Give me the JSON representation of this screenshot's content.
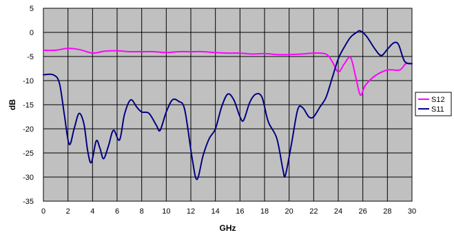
{
  "chart_data": {
    "type": "line",
    "xlabel": "GHz",
    "ylabel": "dB",
    "xlim": [
      0,
      30
    ],
    "ylim": [
      -35,
      5
    ],
    "x_ticks": [
      0,
      2,
      4,
      6,
      8,
      10,
      12,
      14,
      16,
      18,
      20,
      22,
      24,
      26,
      28,
      30
    ],
    "y_ticks": [
      5,
      0,
      -5,
      -10,
      -15,
      -20,
      -25,
      -30,
      -35
    ],
    "grid": true,
    "legend_position": "right",
    "plot_background": "#c0c0c0",
    "series": [
      {
        "name": "S12",
        "color": "#ff00ff",
        "points": [
          [
            0,
            -3.7
          ],
          [
            1,
            -3.7
          ],
          [
            2,
            -3.3
          ],
          [
            3,
            -3.6
          ],
          [
            4,
            -4.3
          ],
          [
            5,
            -3.9
          ],
          [
            6,
            -3.8
          ],
          [
            7,
            -4.0
          ],
          [
            8,
            -4.0
          ],
          [
            9,
            -4.0
          ],
          [
            10,
            -4.2
          ],
          [
            11,
            -4.0
          ],
          [
            12,
            -4.0
          ],
          [
            13,
            -4.0
          ],
          [
            14,
            -4.2
          ],
          [
            15,
            -4.3
          ],
          [
            16,
            -4.3
          ],
          [
            17,
            -4.5
          ],
          [
            18,
            -4.4
          ],
          [
            19,
            -4.6
          ],
          [
            20,
            -4.6
          ],
          [
            21,
            -4.5
          ],
          [
            22,
            -4.3
          ],
          [
            23,
            -4.5
          ],
          [
            23.5,
            -6.0
          ],
          [
            24,
            -8.2
          ],
          [
            24.5,
            -6.5
          ],
          [
            25,
            -5.2
          ],
          [
            25.4,
            -9.0
          ],
          [
            25.8,
            -13.0
          ],
          [
            26.2,
            -11.0
          ],
          [
            27,
            -9.0
          ],
          [
            28,
            -7.8
          ],
          [
            29,
            -7.8
          ],
          [
            29.5,
            -6.5
          ],
          [
            30,
            -6.5
          ]
        ]
      },
      {
        "name": "S11",
        "color": "#000080",
        "points": [
          [
            0,
            -8.8
          ],
          [
            0.8,
            -8.8
          ],
          [
            1.3,
            -10.5
          ],
          [
            1.7,
            -17.0
          ],
          [
            2.1,
            -23.2
          ],
          [
            2.5,
            -20.0
          ],
          [
            2.9,
            -16.8
          ],
          [
            3.3,
            -19.0
          ],
          [
            3.6,
            -24.5
          ],
          [
            3.9,
            -27.0
          ],
          [
            4.3,
            -22.5
          ],
          [
            4.6,
            -24.0
          ],
          [
            4.9,
            -26.2
          ],
          [
            5.3,
            -23.5
          ],
          [
            5.7,
            -20.3
          ],
          [
            6.2,
            -22.3
          ],
          [
            6.6,
            -17.0
          ],
          [
            7.1,
            -14.0
          ],
          [
            7.6,
            -15.5
          ],
          [
            8.0,
            -16.5
          ],
          [
            8.6,
            -16.8
          ],
          [
            9.2,
            -19.3
          ],
          [
            9.5,
            -20.3
          ],
          [
            10.0,
            -16.5
          ],
          [
            10.5,
            -14.0
          ],
          [
            11.0,
            -14.3
          ],
          [
            11.5,
            -16.0
          ],
          [
            12.1,
            -26.0
          ],
          [
            12.5,
            -30.5
          ],
          [
            13.0,
            -25.5
          ],
          [
            13.5,
            -22.0
          ],
          [
            14.0,
            -20.0
          ],
          [
            14.5,
            -15.5
          ],
          [
            15.0,
            -12.8
          ],
          [
            15.5,
            -14.0
          ],
          [
            16.0,
            -17.5
          ],
          [
            16.3,
            -18.2
          ],
          [
            16.8,
            -14.5
          ],
          [
            17.3,
            -12.8
          ],
          [
            17.8,
            -13.5
          ],
          [
            18.3,
            -18.5
          ],
          [
            19.0,
            -22.0
          ],
          [
            19.5,
            -28.5
          ],
          [
            19.7,
            -29.6
          ],
          [
            20.2,
            -23.0
          ],
          [
            20.7,
            -16.0
          ],
          [
            21.1,
            -15.6
          ],
          [
            21.6,
            -17.5
          ],
          [
            22.0,
            -17.5
          ],
          [
            22.5,
            -15.5
          ],
          [
            23.0,
            -13.5
          ],
          [
            23.5,
            -9.5
          ],
          [
            24.0,
            -5.5
          ],
          [
            24.5,
            -3.0
          ],
          [
            25.0,
            -1.0
          ],
          [
            25.5,
            0.0
          ],
          [
            25.8,
            0.3
          ],
          [
            26.3,
            -0.8
          ],
          [
            27.0,
            -3.5
          ],
          [
            27.5,
            -4.8
          ],
          [
            28.0,
            -3.5
          ],
          [
            28.5,
            -2.2
          ],
          [
            28.9,
            -2.5
          ],
          [
            29.4,
            -6.0
          ],
          [
            30,
            -6.5
          ]
        ]
      }
    ]
  }
}
